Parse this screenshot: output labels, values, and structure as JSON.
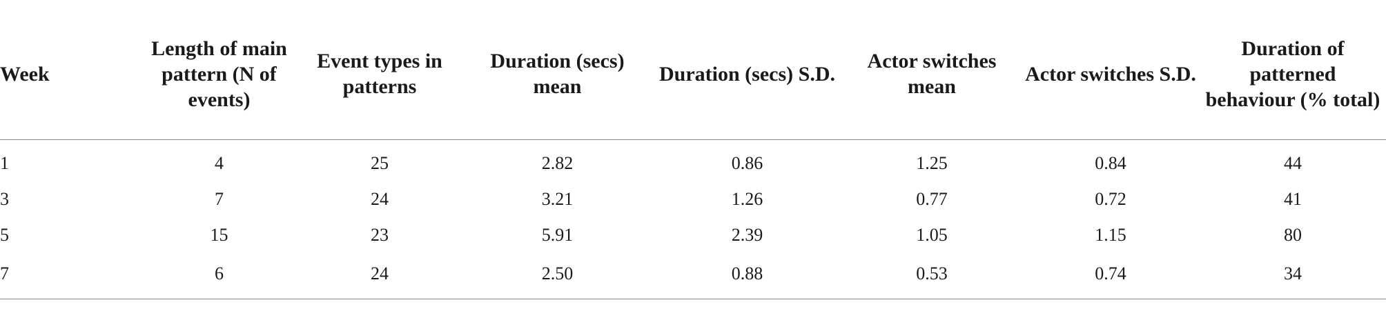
{
  "table": {
    "headers": [
      "Week",
      "Length of main pattern (N of events)",
      "Event types in patterns",
      "Duration (secs) mean",
      "Duration (secs) S.D.",
      "Actor switches mean",
      "Actor switches S.D.",
      "Duration of patterned behaviour (% total)"
    ],
    "rows": [
      [
        "1",
        "4",
        "25",
        "2.82",
        "0.86",
        "1.25",
        "0.84",
        "44"
      ],
      [
        "3",
        "7",
        "24",
        "3.21",
        "1.26",
        "0.77",
        "0.72",
        "41"
      ],
      [
        "5",
        "15",
        "23",
        "5.91",
        "2.39",
        "1.05",
        "1.15",
        "80"
      ],
      [
        "7",
        "6",
        "24",
        "2.50",
        "0.88",
        "0.53",
        "0.74",
        "34"
      ]
    ]
  }
}
